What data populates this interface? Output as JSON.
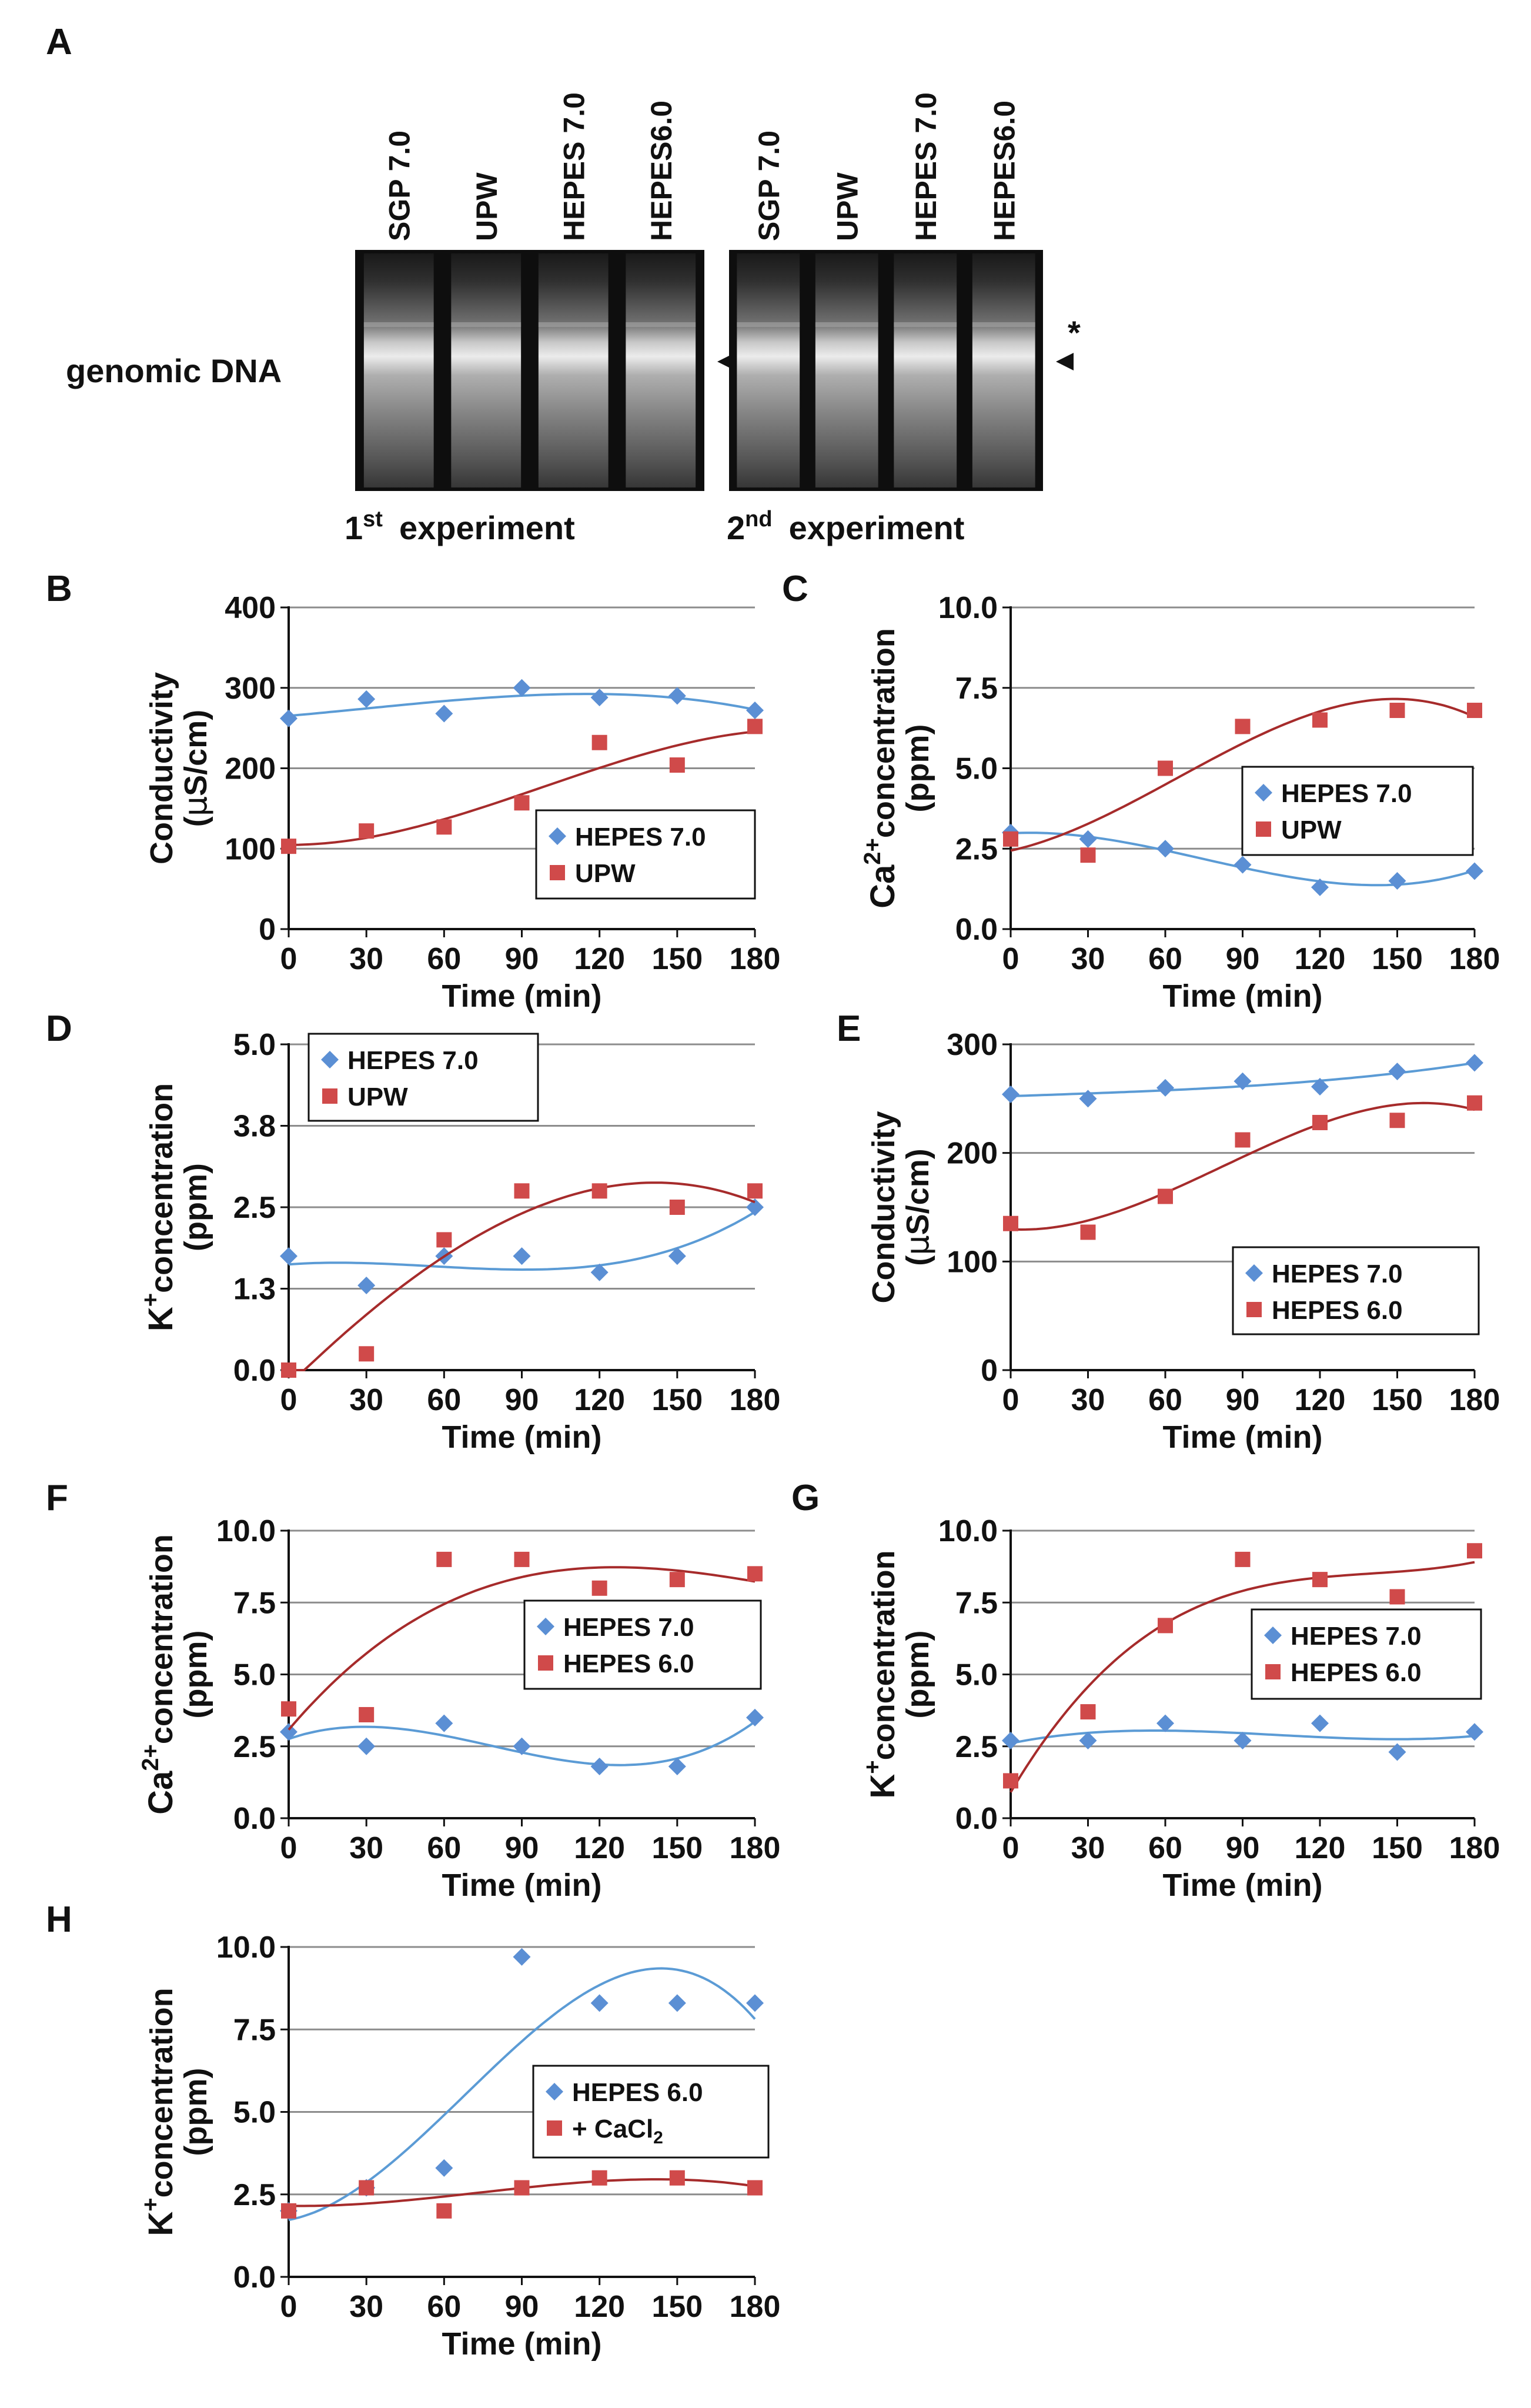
{
  "colors": {
    "series_a": "#5b8fd4",
    "series_b": "#d04a4a",
    "grid": "#8c8c8c"
  },
  "gel": {
    "panel_label": "A",
    "row_label": "genomic DNA",
    "marker_star": "*",
    "gels": [
      {
        "lanes": [
          "SGP 7.0",
          "UPW",
          "HEPES 7.0",
          "HEPES6.0"
        ],
        "caption_ordinal": "1",
        "caption_sup": "st",
        "caption_text": "experiment"
      },
      {
        "lanes": [
          "SGP 7.0",
          "UPW",
          "HEPES 7.0",
          "HEPES6.0"
        ],
        "caption_ordinal": "2",
        "caption_sup": "nd",
        "caption_text": "experiment"
      }
    ]
  },
  "chart_data": [
    {
      "id": "B",
      "type": "scatter",
      "ylabel": {
        "main": "Conductivity",
        "unit_prefix": "(",
        "unit_greek": "μ",
        "unit_rest": "S/cm)"
      },
      "xlabel": "Time (min)",
      "ylim": [
        0,
        400
      ],
      "yticks": [
        "0",
        "100",
        "200",
        "300",
        "400"
      ],
      "x": [
        0,
        30,
        60,
        90,
        120,
        150,
        180
      ],
      "xticks": [
        "0",
        "30",
        "60",
        "90",
        "120",
        "150",
        "180"
      ],
      "legend_position": "lower-right",
      "series": [
        {
          "name": "HEPES 7.0",
          "marker": "diamond",
          "values": [
            262,
            286,
            268,
            300,
            288,
            290,
            272
          ]
        },
        {
          "name": "UPW",
          "marker": "square",
          "values": [
            103,
            122,
            127,
            157,
            232,
            204,
            252
          ]
        }
      ]
    },
    {
      "id": "C",
      "type": "scatter",
      "ylabel": {
        "ion": "Ca",
        "charge": "2+",
        "text": "concentration",
        "unit": "(ppm)"
      },
      "xlabel": "Time (min)",
      "ylim": [
        0,
        10
      ],
      "yticks": [
        "0.0",
        "2.5",
        "5.0",
        "7.5",
        "10.0"
      ],
      "x": [
        0,
        30,
        60,
        90,
        120,
        150,
        180
      ],
      "xticks": [
        "0",
        "30",
        "60",
        "90",
        "120",
        "150",
        "180"
      ],
      "legend_position": "right",
      "series": [
        {
          "name": "HEPES 7.0",
          "marker": "diamond",
          "values": [
            3.0,
            2.8,
            2.5,
            2.0,
            1.3,
            1.5,
            1.8
          ]
        },
        {
          "name": "UPW",
          "marker": "square",
          "values": [
            2.8,
            2.3,
            5.0,
            6.3,
            6.5,
            6.8,
            6.8
          ]
        }
      ]
    },
    {
      "id": "D",
      "type": "scatter",
      "ylabel": {
        "ion": "K",
        "charge": "+",
        "text": "concentration",
        "unit": "(ppm)"
      },
      "xlabel": "Time (min)",
      "ylim": [
        0,
        5
      ],
      "yticks": [
        "0.0",
        "1.3",
        "2.5",
        "3.8",
        "5.0"
      ],
      "x": [
        0,
        30,
        60,
        90,
        120,
        150,
        180
      ],
      "xticks": [
        "0",
        "30",
        "60",
        "90",
        "120",
        "150",
        "180"
      ],
      "legend_position": "upper-left",
      "series": [
        {
          "name": "HEPES 7.0",
          "marker": "diamond",
          "values": [
            1.75,
            1.3,
            1.75,
            1.75,
            1.5,
            1.75,
            2.5
          ]
        },
        {
          "name": "UPW",
          "marker": "square",
          "values": [
            0.0,
            0.25,
            2.0,
            2.75,
            2.75,
            2.5,
            2.75
          ]
        }
      ]
    },
    {
      "id": "E",
      "type": "scatter",
      "ylabel": {
        "main": "Conductivity",
        "unit_prefix": "(",
        "unit_greek": "μ",
        "unit_rest": "S/cm)"
      },
      "xlabel": "Time (min)",
      "ylim": [
        0,
        300
      ],
      "yticks": [
        "0",
        "100",
        "200",
        "300"
      ],
      "x": [
        0,
        30,
        60,
        90,
        120,
        150,
        180
      ],
      "xticks": [
        "0",
        "30",
        "60",
        "90",
        "120",
        "150",
        "180"
      ],
      "legend_position": "lower-right",
      "series": [
        {
          "name": "HEPES 7.0",
          "marker": "diamond",
          "values": [
            254,
            250,
            260,
            266,
            261,
            275,
            283
          ]
        },
        {
          "name": "HEPES 6.0",
          "marker": "square",
          "values": [
            135,
            127,
            160,
            212,
            228,
            230,
            246
          ]
        }
      ]
    },
    {
      "id": "F",
      "type": "scatter",
      "ylabel": {
        "ion": "Ca",
        "charge": "2+",
        "text": "concentration",
        "unit": "(ppm)"
      },
      "xlabel": "Time (min)",
      "ylim": [
        0,
        10
      ],
      "yticks": [
        "0.0",
        "2.5",
        "5.0",
        "7.5",
        "10.0"
      ],
      "x": [
        0,
        30,
        60,
        90,
        120,
        150,
        180
      ],
      "xticks": [
        "0",
        "30",
        "60",
        "90",
        "120",
        "150",
        "180"
      ],
      "legend_position": "right",
      "series": [
        {
          "name": "HEPES 7.0",
          "marker": "diamond",
          "values": [
            3.0,
            2.5,
            3.3,
            2.5,
            1.8,
            1.8,
            3.5
          ]
        },
        {
          "name": "HEPES 6.0",
          "marker": "square",
          "values": [
            3.8,
            3.6,
            9.0,
            9.0,
            8.0,
            8.3,
            8.5
          ]
        }
      ]
    },
    {
      "id": "G",
      "type": "scatter",
      "ylabel": {
        "ion": "K",
        "charge": "+",
        "text": "concentration",
        "unit": "(ppm)"
      },
      "xlabel": "Time (min)",
      "ylim": [
        0,
        10
      ],
      "yticks": [
        "0.0",
        "2.5",
        "5.0",
        "7.5",
        "10.0"
      ],
      "x": [
        0,
        30,
        60,
        90,
        120,
        150,
        180
      ],
      "xticks": [
        "0",
        "30",
        "60",
        "90",
        "120",
        "150",
        "180"
      ],
      "legend_position": "right",
      "series": [
        {
          "name": "HEPES 7.0",
          "marker": "diamond",
          "values": [
            2.7,
            2.7,
            3.3,
            2.7,
            3.3,
            2.3,
            3.0
          ]
        },
        {
          "name": "HEPES 6.0",
          "marker": "square",
          "values": [
            1.3,
            3.7,
            6.7,
            9.0,
            8.3,
            7.7,
            9.3
          ]
        }
      ]
    },
    {
      "id": "H",
      "type": "scatter",
      "ylabel": {
        "ion": "K",
        "charge": "+",
        "text": "concentration",
        "unit": "(ppm)"
      },
      "xlabel": "Time (min)",
      "ylim": [
        0,
        10
      ],
      "yticks": [
        "0.0",
        "2.5",
        "5.0",
        "7.5",
        "10.0"
      ],
      "x": [
        0,
        30,
        60,
        90,
        120,
        150,
        180
      ],
      "xticks": [
        "0",
        "30",
        "60",
        "90",
        "120",
        "150",
        "180"
      ],
      "legend_position": "right",
      "series": [
        {
          "name": "HEPES 6.0",
          "marker": "diamond",
          "values": [
            2.0,
            2.7,
            3.3,
            9.7,
            8.3,
            8.3,
            8.3
          ]
        },
        {
          "name": "+ CaCl2",
          "name_base": "+ CaCl",
          "name_sub": "2",
          "marker": "square",
          "values": [
            2.0,
            2.7,
            2.0,
            2.7,
            3.0,
            3.0,
            2.7
          ]
        }
      ]
    }
  ]
}
